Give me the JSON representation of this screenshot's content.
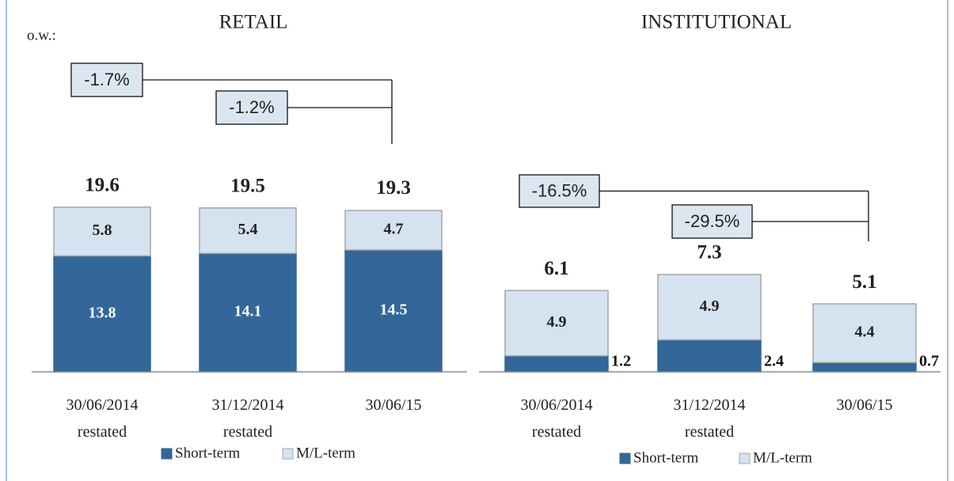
{
  "chart_data": [
    {
      "type": "stacked_bar",
      "title": "RETAIL",
      "note": "o.w.:",
      "categories": [
        "30/06/2014\nrestated",
        "31/12/2014\nrestated",
        "30/06/15"
      ],
      "series": [
        {
          "name": "Short-term",
          "color": "#336699",
          "values": [
            13.8,
            14.1,
            14.5
          ]
        },
        {
          "name": "M/L-term",
          "color": "#d5e2ef",
          "values": [
            5.8,
            5.4,
            4.7
          ]
        }
      ],
      "totals": [
        19.6,
        19.5,
        19.3
      ],
      "annotations": [
        "-1.7%",
        "-1.2%"
      ]
    },
    {
      "type": "stacked_bar",
      "title": "INSTITUTIONAL",
      "categories": [
        "30/06/2014\nrestated",
        "31/12/2014\nrestated",
        "30/06/15"
      ],
      "series": [
        {
          "name": "Short-term",
          "color": "#336699",
          "values": [
            1.2,
            2.4,
            0.7
          ]
        },
        {
          "name": "M/L-term",
          "color": "#d5e2ef",
          "values": [
            4.9,
            4.9,
            4.4
          ]
        }
      ],
      "totals": [
        6.1,
        7.3,
        5.1
      ],
      "annotations": [
        "-16.5%",
        "-29.5%"
      ]
    }
  ]
}
